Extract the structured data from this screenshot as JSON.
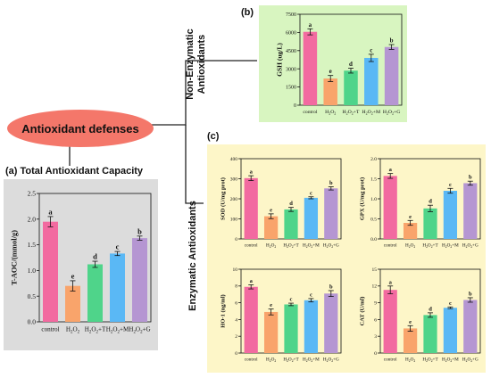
{
  "root_label": "Antioxidant defenses",
  "colors": {
    "root_fill": "#f4776a",
    "panel_grey": "#dcdcdc",
    "panel_green": "#d8f5c0",
    "panel_yellow": "#fdf6c8",
    "bars": [
      "#f26aa0",
      "#f9a46b",
      "#4fd48a",
      "#5ab8f5",
      "#b596d2"
    ]
  },
  "sections": {
    "a": {
      "tag": "(a)",
      "title": "Total Antioxidant Capacity"
    },
    "b": {
      "tag": "(b)",
      "side_label_1": "Non-Enzymatic",
      "side_label_2": "Antioxidants"
    },
    "c": {
      "tag": "(c)",
      "side_label": "Enzymatic Antioxidants"
    }
  },
  "chart_data": [
    {
      "id": "taoc",
      "type": "bar",
      "categories": [
        "control",
        "H2O2",
        "H2O2+T",
        "H2O2+M",
        "H2O2+G"
      ],
      "values": [
        1.95,
        0.7,
        1.12,
        1.33,
        1.63
      ],
      "errors": [
        0.1,
        0.1,
        0.06,
        0.04,
        0.04
      ],
      "letters": [
        "a",
        "e",
        "d",
        "c",
        "b"
      ],
      "ylabel": "T-AOC/(mmol/g)",
      "ylim": [
        0,
        2.5
      ],
      "yticks": [
        "0.0",
        "0.5",
        "1.0",
        "1.5",
        "2.0",
        "2.5"
      ]
    },
    {
      "id": "gsh",
      "type": "bar",
      "categories": [
        "control",
        "H2O2",
        "H2O2+T",
        "H2O2+M",
        "H2O2+G"
      ],
      "values": [
        6050,
        2200,
        2850,
        3900,
        4800
      ],
      "errors": [
        250,
        250,
        200,
        300,
        200
      ],
      "letters": [
        "a",
        "e",
        "d",
        "c",
        "b"
      ],
      "ylabel": "GSH (ug/L)",
      "ylim": [
        0,
        7500
      ],
      "yticks": [
        "0",
        "1500",
        "3000",
        "4500",
        "6000",
        "7500"
      ]
    },
    {
      "id": "sod",
      "type": "bar",
      "categories": [
        "control",
        "H2O2",
        "H2O2+T",
        "H2O2+M",
        "H2O2+G"
      ],
      "values": [
        303,
        113,
        147,
        205,
        252
      ],
      "errors": [
        12,
        12,
        10,
        5,
        8
      ],
      "letters": [
        "a",
        "e",
        "d",
        "c",
        "b"
      ],
      "ylabel": "SOD (U/mg prot)",
      "ylim": [
        0,
        400
      ],
      "yticks": [
        "0",
        "100",
        "200",
        "300",
        "400"
      ]
    },
    {
      "id": "gpx",
      "type": "bar",
      "categories": [
        "control",
        "H2O2",
        "H2O2+T",
        "H2O2+M",
        "H2O2+G"
      ],
      "values": [
        1.57,
        0.4,
        0.76,
        1.2,
        1.39
      ],
      "errors": [
        0.06,
        0.06,
        0.08,
        0.06,
        0.05
      ],
      "letters": [
        "a",
        "e",
        "d",
        "c",
        "b"
      ],
      "ylabel": "GPX (U/mg prot)",
      "ylim": [
        0,
        2.0
      ],
      "yticks": [
        "0.0",
        "0.5",
        "1.0",
        "1.5",
        "2.0"
      ]
    },
    {
      "id": "ho1",
      "type": "bar",
      "categories": [
        "control",
        "H2O2",
        "H2O2+T",
        "H2O2+M",
        "H2O2+G"
      ],
      "values": [
        7.9,
        4.9,
        5.8,
        6.3,
        7.1
      ],
      "errors": [
        0.25,
        0.35,
        0.15,
        0.2,
        0.35
      ],
      "letters": [
        "a",
        "e",
        "c",
        "c",
        "b"
      ],
      "ylabel": "HO-1 (ng/ml)",
      "ylim": [
        0,
        10
      ],
      "yticks": [
        "0",
        "2",
        "4",
        "6",
        "8",
        "10"
      ]
    },
    {
      "id": "cat",
      "type": "bar",
      "categories": [
        "control",
        "H2O2",
        "H2O2+T",
        "H2O2+M",
        "H2O2+G"
      ],
      "values": [
        11.3,
        4.4,
        6.8,
        8.1,
        9.5
      ],
      "errors": [
        0.7,
        0.5,
        0.4,
        0.15,
        0.4
      ],
      "letters": [
        "a",
        "e",
        "d",
        "c",
        "b"
      ],
      "ylabel": "CAT (U/ml)",
      "ylim": [
        0,
        15
      ],
      "yticks": [
        "0",
        "3",
        "6",
        "9",
        "12",
        "15"
      ]
    }
  ]
}
